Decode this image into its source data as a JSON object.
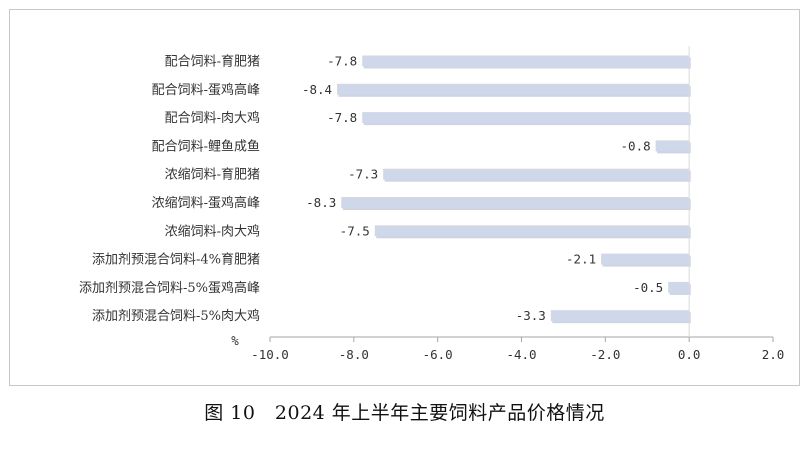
{
  "chart_data": {
    "type": "bar",
    "orientation": "horizontal",
    "categories": [
      "配合饲料-育肥猪",
      "配合饲料-蛋鸡高峰",
      "配合饲料-肉大鸡",
      "配合饲料-鲤鱼成鱼",
      "浓缩饲料-育肥猪",
      "浓缩饲料-蛋鸡高峰",
      "浓缩饲料-肉大鸡",
      "添加剂预混合饲料-4%育肥猪",
      "添加剂预混合饲料-5%蛋鸡高峰",
      "添加剂预混合饲料-5%肉大鸡"
    ],
    "values": [
      -7.8,
      -8.4,
      -7.8,
      -0.8,
      -7.3,
      -8.3,
      -7.5,
      -2.1,
      -0.5,
      -3.3
    ],
    "value_labels": [
      "-7.8",
      "-8.4",
      "-7.8",
      "-0.8",
      "-7.3",
      "-8.3",
      "-7.5",
      "-2.1",
      "-0.5",
      "-3.3"
    ],
    "xlim": [
      -10.0,
      2.0
    ],
    "xticks": [
      -10.0,
      -8.0,
      -6.0,
      -4.0,
      -2.0,
      0.0,
      2.0
    ],
    "xtick_labels": [
      "-10.0",
      "-8.0",
      "-6.0",
      "-4.0",
      "-2.0",
      "0.0",
      "2.0"
    ],
    "unit_label": "%",
    "bar_color": "#cfd7ea",
    "bar_shadow_color": "#a8b0c2",
    "axis_color": "#a6a6a6",
    "grid": false,
    "legend": "none"
  },
  "caption": "图 10　2024 年上半年主要饲料产品价格情况"
}
